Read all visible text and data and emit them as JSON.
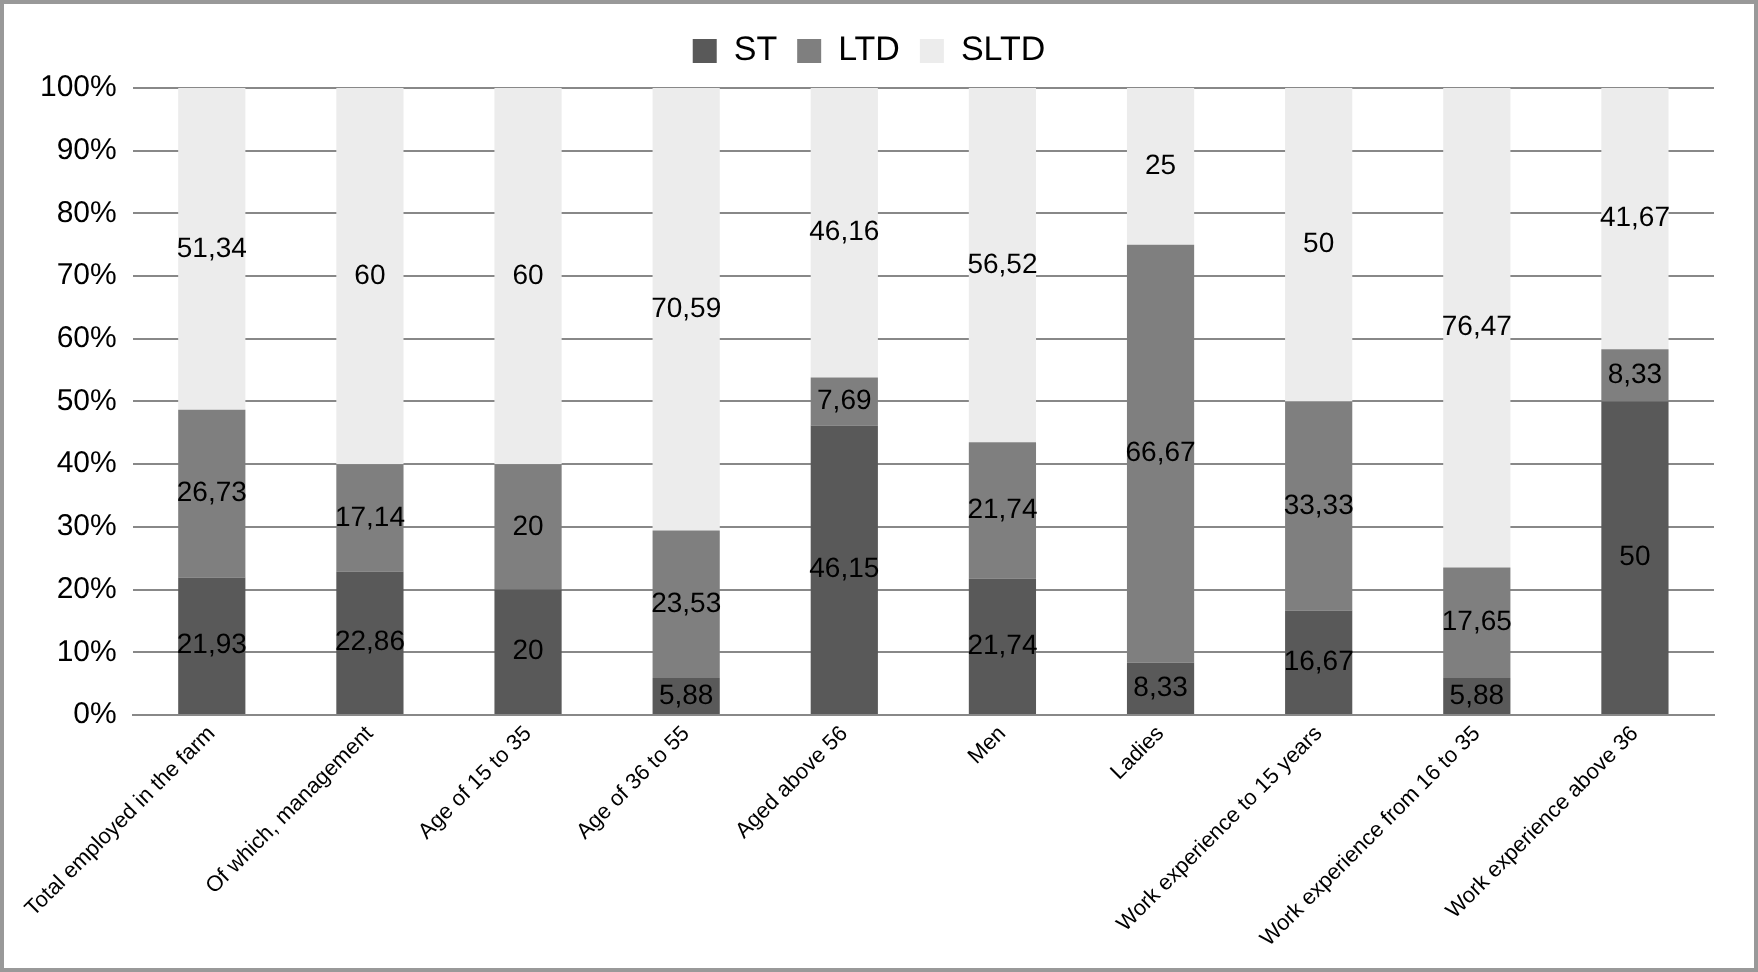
{
  "chart_data": {
    "type": "bar",
    "stacked": true,
    "categories": [
      "Total employed in the farm",
      "Of which, management",
      "Age of 15 to 35",
      "Age of 36 to 55",
      "Aged above 56",
      "Men",
      "Ladies",
      "Work experience to 15 years",
      "Work experience from 16 to 35",
      "Work experience above 36"
    ],
    "series": [
      {
        "name": "ST",
        "color": "#595959",
        "values": [
          21.93,
          22.86,
          20,
          5.88,
          46.15,
          21.74,
          8.33,
          16.67,
          5.88,
          50
        ],
        "value_labels": [
          "21,93",
          "22,86",
          "20",
          "5,88",
          "46,15",
          "21,74",
          "8,33",
          "16,67",
          "5,88",
          "50"
        ]
      },
      {
        "name": "LTD",
        "color": "#7f7f7f",
        "values": [
          26.73,
          17.14,
          20,
          23.53,
          7.69,
          21.74,
          66.67,
          33.33,
          17.65,
          8.33
        ],
        "value_labels": [
          "26,73",
          "17,14",
          "20",
          "23,53",
          "7,69",
          "21,74",
          "66,67",
          "33,33",
          "17,65",
          "8,33"
        ]
      },
      {
        "name": "SLTD",
        "color": "#ececec",
        "values": [
          51.34,
          60,
          60,
          70.59,
          46.16,
          56.52,
          25,
          50,
          76.47,
          41.67
        ],
        "value_labels": [
          "51,34",
          "60",
          "60",
          "70,59",
          "46,16",
          "56,52",
          "25",
          "50",
          "76,47",
          "41,67"
        ]
      }
    ],
    "ylim": [
      0,
      100
    ],
    "yticks": [
      {
        "value": 0,
        "label": "0%"
      },
      {
        "value": 10,
        "label": "10%"
      },
      {
        "value": 20,
        "label": "20%"
      },
      {
        "value": 30,
        "label": "30%"
      },
      {
        "value": 40,
        "label": "40%"
      },
      {
        "value": 50,
        "label": "50%"
      },
      {
        "value": 60,
        "label": "60%"
      },
      {
        "value": 70,
        "label": "70%"
      },
      {
        "value": 80,
        "label": "80%"
      },
      {
        "value": 90,
        "label": "90%"
      },
      {
        "value": 100,
        "label": "100%"
      }
    ],
    "grid": "y",
    "legend": "top"
  }
}
